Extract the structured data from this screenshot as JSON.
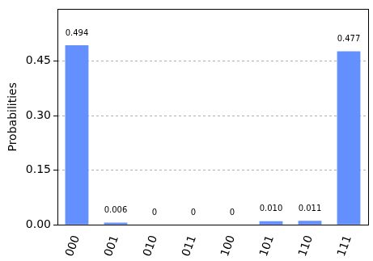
{
  "chart_data": {
    "type": "bar",
    "y_label": "Probabilities",
    "categories": [
      "000",
      "001",
      "010",
      "011",
      "100",
      "101",
      "110",
      "111"
    ],
    "values": [
      0.494,
      0.006,
      0,
      0,
      0,
      0.01,
      0.011,
      0.477
    ],
    "value_labels": [
      "0.494",
      "0.006",
      "0",
      "0",
      "0",
      "0.010",
      "0.011",
      "0.477"
    ],
    "data_labels": true,
    "color": "#648fff",
    "ylim": [
      0,
      0.593
    ],
    "yticks": [
      {
        "value": 0,
        "label": "0.00"
      },
      {
        "value": 0.15,
        "label": "0.15"
      },
      {
        "value": 0.3,
        "label": "0.30"
      },
      {
        "value": 0.45,
        "label": "0.45"
      }
    ],
    "grid": true
  }
}
